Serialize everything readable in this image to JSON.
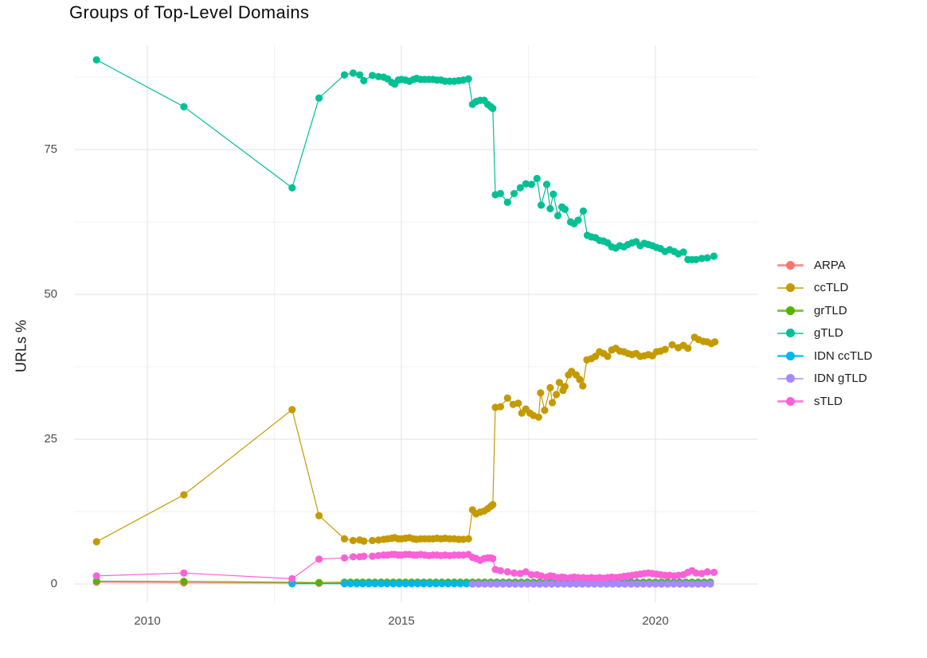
{
  "page": {
    "title": "Groups of Top-Level Domains"
  },
  "colors": {
    "background": "#ffffff",
    "grid_major": "#e7e7e7",
    "grid_minor": "#f1f1f1",
    "axis_text": "#4d4d4d",
    "title_text": "#0a0a0a",
    "label_text": "#1a1a1a"
  },
  "chart_data": {
    "type": "line",
    "title": "Groups of Top-Level Domains",
    "xlabel": "",
    "ylabel": "URLs %",
    "x_ticks": [
      2010,
      2015,
      2020
    ],
    "y_ticks": [
      0,
      25,
      50,
      75
    ],
    "x_minor_gridlines": [
      2012.5,
      2017.5
    ],
    "y_minor_gridlines": [
      12.5,
      37.5,
      62.5,
      87.5
    ],
    "x_range": [
      2008.56,
      2022.02
    ],
    "y_range": [
      -3.2,
      93.0
    ],
    "grid": true,
    "legend_position": "right",
    "marker": "point",
    "legend": [
      "ARPA",
      "ccTLD",
      "grTLD",
      "gTLD",
      "IDN ccTLD",
      "IDN gTLD",
      "sTLD"
    ],
    "series": [
      {
        "name": "ARPA",
        "color": "#F8766D",
        "points": [
          [
            2009.0,
            0.3
          ],
          [
            2010.72,
            0.2
          ],
          [
            2012.85,
            0.15
          ],
          [
            2013.38,
            0.12
          ]
        ],
        "fill": {
          "start": 2013.88,
          "end": 2021.16,
          "step": 0.12,
          "value": 0.15
        }
      },
      {
        "name": "ccTLD",
        "color": "#C49A00",
        "points": [
          [
            2009.0,
            7.3
          ],
          [
            2010.72,
            15.4
          ],
          [
            2012.85,
            30.1
          ],
          [
            2013.38,
            11.8
          ],
          [
            2013.88,
            7.8
          ],
          [
            2014.05,
            7.5
          ],
          [
            2014.18,
            7.6
          ],
          [
            2014.26,
            7.4
          ],
          [
            2014.43,
            7.5
          ],
          [
            2014.55,
            7.6
          ],
          [
            2014.65,
            7.7
          ],
          [
            2014.73,
            7.8
          ],
          [
            2014.81,
            7.9
          ],
          [
            2014.87,
            8.0
          ],
          [
            2014.94,
            7.8
          ],
          [
            2015.0,
            7.8
          ],
          [
            2015.08,
            7.9
          ],
          [
            2015.16,
            8.0
          ],
          [
            2015.24,
            7.8
          ],
          [
            2015.3,
            7.7
          ],
          [
            2015.38,
            7.8
          ],
          [
            2015.46,
            7.8
          ],
          [
            2015.54,
            7.8
          ],
          [
            2015.62,
            7.8
          ],
          [
            2015.7,
            7.9
          ],
          [
            2015.78,
            7.8
          ],
          [
            2015.86,
            7.9
          ],
          [
            2015.95,
            7.8
          ],
          [
            2016.04,
            7.8
          ],
          [
            2016.13,
            7.7
          ],
          [
            2016.22,
            7.7
          ],
          [
            2016.32,
            7.8
          ],
          [
            2016.4,
            12.8
          ],
          [
            2016.47,
            12.1
          ],
          [
            2016.55,
            12.4
          ],
          [
            2016.63,
            12.6
          ],
          [
            2016.7,
            13.0
          ],
          [
            2016.76,
            13.4
          ],
          [
            2016.8,
            13.7
          ],
          [
            2016.85,
            30.5
          ],
          [
            2016.95,
            30.6
          ],
          [
            2017.09,
            32.1
          ],
          [
            2017.2,
            31.0
          ],
          [
            2017.3,
            31.2
          ],
          [
            2017.37,
            29.5
          ],
          [
            2017.45,
            30.2
          ],
          [
            2017.53,
            29.5
          ],
          [
            2017.6,
            29.1
          ],
          [
            2017.7,
            28.8
          ],
          [
            2017.74,
            33.0
          ],
          [
            2017.82,
            30.0
          ],
          [
            2017.93,
            33.9
          ],
          [
            2017.97,
            31.3
          ],
          [
            2018.05,
            32.7
          ],
          [
            2018.11,
            34.8
          ],
          [
            2018.18,
            33.4
          ],
          [
            2018.22,
            34.1
          ],
          [
            2018.29,
            36.1
          ],
          [
            2018.35,
            36.7
          ],
          [
            2018.44,
            36.1
          ],
          [
            2018.51,
            35.3
          ],
          [
            2018.57,
            34.2
          ],
          [
            2018.65,
            38.7
          ],
          [
            2018.74,
            38.9
          ],
          [
            2018.82,
            39.3
          ],
          [
            2018.9,
            40.1
          ],
          [
            2018.98,
            39.8
          ],
          [
            2019.06,
            39.3
          ],
          [
            2019.14,
            40.4
          ],
          [
            2019.22,
            40.7
          ],
          [
            2019.3,
            40.2
          ],
          [
            2019.38,
            40.1
          ],
          [
            2019.46,
            39.8
          ],
          [
            2019.54,
            39.6
          ],
          [
            2019.62,
            39.8
          ],
          [
            2019.7,
            39.3
          ],
          [
            2019.78,
            39.4
          ],
          [
            2019.86,
            39.6
          ],
          [
            2019.94,
            39.4
          ],
          [
            2020.02,
            40.1
          ],
          [
            2020.1,
            40.2
          ],
          [
            2020.19,
            40.5
          ],
          [
            2020.33,
            41.3
          ],
          [
            2020.45,
            40.8
          ],
          [
            2020.55,
            41.2
          ],
          [
            2020.64,
            40.7
          ],
          [
            2020.77,
            42.6
          ],
          [
            2020.85,
            42.2
          ],
          [
            2020.94,
            41.9
          ],
          [
            2021.02,
            41.8
          ],
          [
            2021.1,
            41.5
          ],
          [
            2021.17,
            41.8
          ]
        ]
      },
      {
        "name": "grTLD",
        "color": "#53B400",
        "points": [
          [
            2009.0,
            0.5
          ],
          [
            2010.72,
            0.45
          ],
          [
            2012.85,
            0.3
          ],
          [
            2013.38,
            0.25
          ]
        ],
        "fill": {
          "start": 2013.88,
          "end": 2021.16,
          "step": 0.12,
          "value": 0.32
        }
      },
      {
        "name": "gTLD",
        "color": "#00C094",
        "points": [
          [
            2009.0,
            90.5
          ],
          [
            2010.72,
            82.4
          ],
          [
            2012.85,
            68.4
          ],
          [
            2013.38,
            83.9
          ],
          [
            2013.88,
            87.9
          ],
          [
            2014.05,
            88.2
          ],
          [
            2014.18,
            87.9
          ],
          [
            2014.26,
            86.9
          ],
          [
            2014.43,
            87.8
          ],
          [
            2014.55,
            87.6
          ],
          [
            2014.65,
            87.5
          ],
          [
            2014.73,
            87.2
          ],
          [
            2014.81,
            86.6
          ],
          [
            2014.87,
            86.3
          ],
          [
            2014.94,
            87.0
          ],
          [
            2015.0,
            87.1
          ],
          [
            2015.08,
            87.0
          ],
          [
            2015.16,
            86.8
          ],
          [
            2015.24,
            87.1
          ],
          [
            2015.3,
            87.3
          ],
          [
            2015.38,
            87.1
          ],
          [
            2015.46,
            87.1
          ],
          [
            2015.54,
            87.1
          ],
          [
            2015.62,
            87.1
          ],
          [
            2015.7,
            87.0
          ],
          [
            2015.78,
            87.0
          ],
          [
            2015.86,
            86.8
          ],
          [
            2015.95,
            86.8
          ],
          [
            2016.04,
            86.8
          ],
          [
            2016.13,
            86.9
          ],
          [
            2016.22,
            87.0
          ],
          [
            2016.32,
            87.2
          ],
          [
            2016.4,
            82.8
          ],
          [
            2016.47,
            83.3
          ],
          [
            2016.55,
            83.5
          ],
          [
            2016.63,
            83.5
          ],
          [
            2016.7,
            82.8
          ],
          [
            2016.76,
            82.4
          ],
          [
            2016.8,
            82.1
          ],
          [
            2016.85,
            67.2
          ],
          [
            2016.95,
            67.4
          ],
          [
            2017.09,
            65.9
          ],
          [
            2017.22,
            67.4
          ],
          [
            2017.34,
            68.4
          ],
          [
            2017.45,
            69.1
          ],
          [
            2017.56,
            69.0
          ],
          [
            2017.67,
            70.0
          ],
          [
            2017.75,
            65.4
          ],
          [
            2017.86,
            69.0
          ],
          [
            2017.93,
            64.8
          ],
          [
            2017.99,
            67.3
          ],
          [
            2018.08,
            63.6
          ],
          [
            2018.16,
            65.1
          ],
          [
            2018.22,
            64.7
          ],
          [
            2018.33,
            62.5
          ],
          [
            2018.4,
            62.2
          ],
          [
            2018.48,
            62.8
          ],
          [
            2018.58,
            64.4
          ],
          [
            2018.66,
            60.2
          ],
          [
            2018.74,
            59.9
          ],
          [
            2018.82,
            59.8
          ],
          [
            2018.9,
            59.3
          ],
          [
            2018.98,
            59.2
          ],
          [
            2019.06,
            58.9
          ],
          [
            2019.14,
            58.2
          ],
          [
            2019.22,
            58.0
          ],
          [
            2019.3,
            58.4
          ],
          [
            2019.38,
            58.2
          ],
          [
            2019.46,
            58.6
          ],
          [
            2019.54,
            58.9
          ],
          [
            2019.62,
            59.1
          ],
          [
            2019.7,
            58.4
          ],
          [
            2019.78,
            58.8
          ],
          [
            2019.86,
            58.6
          ],
          [
            2019.94,
            58.4
          ],
          [
            2020.02,
            58.1
          ],
          [
            2020.1,
            57.9
          ],
          [
            2020.19,
            57.4
          ],
          [
            2020.28,
            57.7
          ],
          [
            2020.37,
            57.4
          ],
          [
            2020.45,
            57.0
          ],
          [
            2020.55,
            57.3
          ],
          [
            2020.64,
            56.0
          ],
          [
            2020.72,
            56.0
          ],
          [
            2020.8,
            56.0
          ],
          [
            2020.91,
            56.2
          ],
          [
            2021.02,
            56.3
          ],
          [
            2021.15,
            56.6
          ]
        ]
      },
      {
        "name": "IDN ccTLD",
        "color": "#00B6EB",
        "points": [
          [
            2012.85,
            0.05
          ]
        ],
        "fill": {
          "start": 2013.88,
          "end": 2021.16,
          "step": 0.12,
          "value": 0.05
        }
      },
      {
        "name": "IDN gTLD",
        "color": "#A58AFF",
        "points": [],
        "fill": {
          "start": 2016.4,
          "end": 2021.16,
          "step": 0.12,
          "value": 0.0
        }
      },
      {
        "name": "sTLD",
        "color": "#FB61D7",
        "points": [
          [
            2009.0,
            1.4
          ],
          [
            2010.72,
            1.9
          ],
          [
            2012.85,
            0.9
          ],
          [
            2013.38,
            4.3
          ],
          [
            2013.88,
            4.5
          ],
          [
            2014.05,
            4.7
          ],
          [
            2014.18,
            4.7
          ],
          [
            2014.26,
            4.8
          ],
          [
            2014.43,
            4.8
          ],
          [
            2014.55,
            4.9
          ],
          [
            2014.65,
            5.0
          ],
          [
            2014.73,
            5.0
          ],
          [
            2014.81,
            5.1
          ],
          [
            2014.87,
            5.1
          ],
          [
            2014.94,
            5.0
          ],
          [
            2015.0,
            5.0
          ],
          [
            2015.08,
            5.1
          ],
          [
            2015.16,
            5.1
          ],
          [
            2015.24,
            5.0
          ],
          [
            2015.3,
            5.0
          ],
          [
            2015.38,
            5.1
          ],
          [
            2015.46,
            5.0
          ],
          [
            2015.54,
            4.9
          ],
          [
            2015.62,
            5.0
          ],
          [
            2015.7,
            5.0
          ],
          [
            2015.78,
            4.9
          ],
          [
            2015.86,
            5.0
          ],
          [
            2015.95,
            4.9
          ],
          [
            2016.04,
            5.0
          ],
          [
            2016.13,
            5.0
          ],
          [
            2016.22,
            5.0
          ],
          [
            2016.32,
            5.1
          ],
          [
            2016.4,
            4.6
          ],
          [
            2016.47,
            4.4
          ],
          [
            2016.55,
            4.1
          ],
          [
            2016.63,
            4.4
          ],
          [
            2016.7,
            4.5
          ],
          [
            2016.76,
            4.5
          ],
          [
            2016.8,
            4.4
          ],
          [
            2016.85,
            2.5
          ],
          [
            2016.95,
            2.3
          ],
          [
            2017.09,
            2.1
          ],
          [
            2017.22,
            1.9
          ],
          [
            2017.34,
            1.8
          ],
          [
            2017.45,
            2.1
          ],
          [
            2017.56,
            1.6
          ],
          [
            2017.67,
            1.6
          ],
          [
            2017.75,
            1.4
          ],
          [
            2017.86,
            1.2
          ],
          [
            2017.93,
            1.4
          ],
          [
            2017.99,
            1.3
          ],
          [
            2018.08,
            1.1
          ],
          [
            2018.16,
            1.2
          ],
          [
            2018.22,
            1.1
          ],
          [
            2018.33,
            1.1
          ],
          [
            2018.4,
            1.2
          ],
          [
            2018.48,
            1.1
          ],
          [
            2018.58,
            1.1
          ],
          [
            2018.66,
            1.0
          ],
          [
            2018.74,
            1.1
          ],
          [
            2018.82,
            1.0
          ],
          [
            2018.9,
            1.1
          ],
          [
            2018.98,
            1.0
          ],
          [
            2019.06,
            1.1
          ],
          [
            2019.14,
            1.2
          ],
          [
            2019.22,
            1.1
          ],
          [
            2019.3,
            1.2
          ],
          [
            2019.38,
            1.3
          ],
          [
            2019.46,
            1.4
          ],
          [
            2019.54,
            1.5
          ],
          [
            2019.62,
            1.6
          ],
          [
            2019.7,
            1.7
          ],
          [
            2019.78,
            1.8
          ],
          [
            2019.86,
            1.9
          ],
          [
            2019.94,
            1.8
          ],
          [
            2020.02,
            1.7
          ],
          [
            2020.1,
            1.6
          ],
          [
            2020.19,
            1.5
          ],
          [
            2020.28,
            1.5
          ],
          [
            2020.37,
            1.4
          ],
          [
            2020.45,
            1.5
          ],
          [
            2020.55,
            1.6
          ],
          [
            2020.64,
            2.0
          ],
          [
            2020.72,
            2.3
          ],
          [
            2020.8,
            1.9
          ],
          [
            2020.91,
            1.8
          ],
          [
            2021.02,
            2.1
          ],
          [
            2021.15,
            2.0
          ]
        ]
      }
    ]
  }
}
